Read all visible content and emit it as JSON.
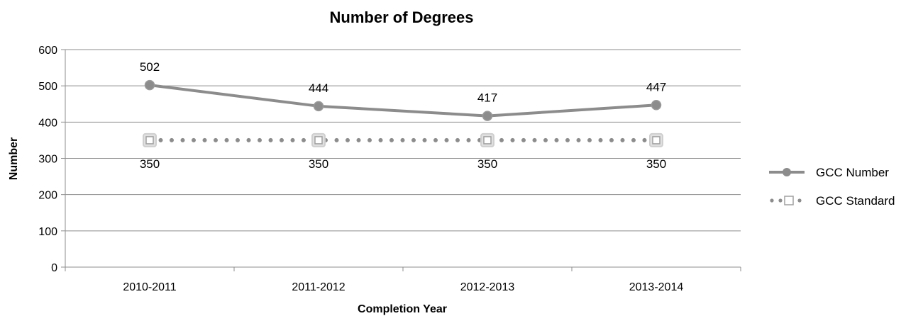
{
  "chart_data": {
    "type": "line",
    "title": "Number of Degrees",
    "xlabel": "Completion Year",
    "ylabel": "Number",
    "categories": [
      "2010-2011",
      "2011-2012",
      "2012-2013",
      "2013-2014"
    ],
    "ylim": [
      0,
      600
    ],
    "yticks": [
      0,
      100,
      200,
      300,
      400,
      500,
      600
    ],
    "grid": "horizontal",
    "legend_position": "right",
    "series": [
      {
        "name": "GCC Number",
        "values": [
          502,
          444,
          417,
          447
        ],
        "labels": [
          "502",
          "444",
          "417",
          "447"
        ],
        "color": "#8c8c8c",
        "style": "solid-line-circle-markers"
      },
      {
        "name": "GCC Standard",
        "values": [
          350,
          350,
          350,
          350
        ],
        "labels": [
          "350",
          "350",
          "350",
          "350"
        ],
        "color": "#8c8c8c",
        "style": "dotted-line-square-markers"
      }
    ]
  }
}
